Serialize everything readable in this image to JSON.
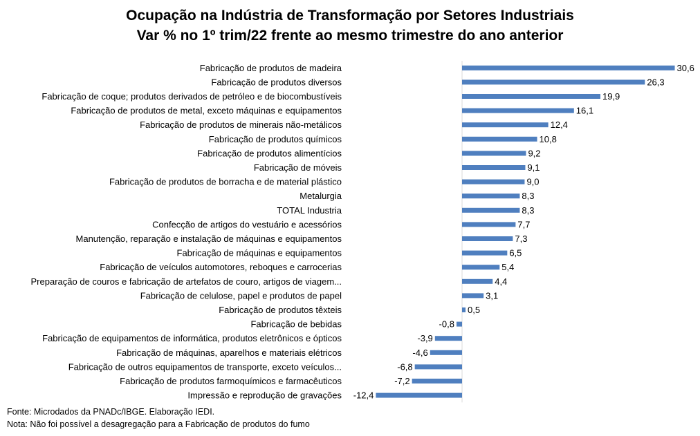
{
  "chart_data": {
    "type": "bar",
    "orientation": "horizontal",
    "title": "Ocupação na Indústria de Transformação por Setores Industriais",
    "subtitle": "Var % no 1º trim/22 frente ao mesmo trimestre do ano anterior",
    "bar_color": "#4f7fbf",
    "xlim": [
      -13,
      31
    ],
    "grid": false,
    "categories": [
      "Fabricação de produtos de madeira",
      "Fabricação de produtos diversos",
      "Fabricação de coque; produtos derivados de petróleo e de biocombustíveis",
      "Fabricação de produtos de metal, exceto máquinas e equipamentos",
      "Fabricação de produtos de minerais não-metálicos",
      "Fabricação de produtos químicos",
      "Fabricação de produtos alimentícios",
      "Fabricação de móveis",
      "Fabricação de produtos de borracha e de material plástico",
      "Metalurgia",
      "TOTAL Industria",
      "Confecção de artigos do vestuário e acessórios",
      "Manutenção, reparação e instalação de máquinas e equipamentos",
      "Fabricação de máquinas e equipamentos",
      "Fabricação de veículos automotores, reboques e carrocerias",
      "Preparação de couros e fabricação de artefatos de couro, artigos de viagem...",
      "Fabricação de celulose, papel e produtos de papel",
      "Fabricação de produtos têxteis",
      "Fabricação de bebidas",
      "Fabricação de equipamentos de informática, produtos eletrônicos e ópticos",
      "Fabricação de máquinas, aparelhos e materiais elétricos",
      "Fabricação de outros equipamentos de transporte, exceto veículos...",
      "Fabricação de produtos farmoquímicos e farmacêuticos",
      "Impressão e reprodução de gravações"
    ],
    "values": [
      30.6,
      26.3,
      19.9,
      16.1,
      12.4,
      10.8,
      9.2,
      9.1,
      9.0,
      8.3,
      8.3,
      7.7,
      7.3,
      6.5,
      5.4,
      4.4,
      3.1,
      0.5,
      -0.8,
      -3.9,
      -4.6,
      -6.8,
      -7.2,
      -12.4
    ],
    "value_labels": [
      "30,6",
      "26,3",
      "19,9",
      "16,1",
      "12,4",
      "10,8",
      "9,2",
      "9,1",
      "9,0",
      "8,3",
      "8,3",
      "7,7",
      "7,3",
      "6,5",
      "5,4",
      "4,4",
      "3,1",
      "0,5",
      "-0,8",
      "-3,9",
      "-4,6",
      "-6,8",
      "-7,2",
      "-12,4"
    ]
  },
  "footnotes": {
    "source": "Fonte: Microdados da PNADc/IBGE. Elaboração IEDI.",
    "note": "Nota: Não foi possível a desagregação para a Fabricação de produtos do fumo"
  }
}
